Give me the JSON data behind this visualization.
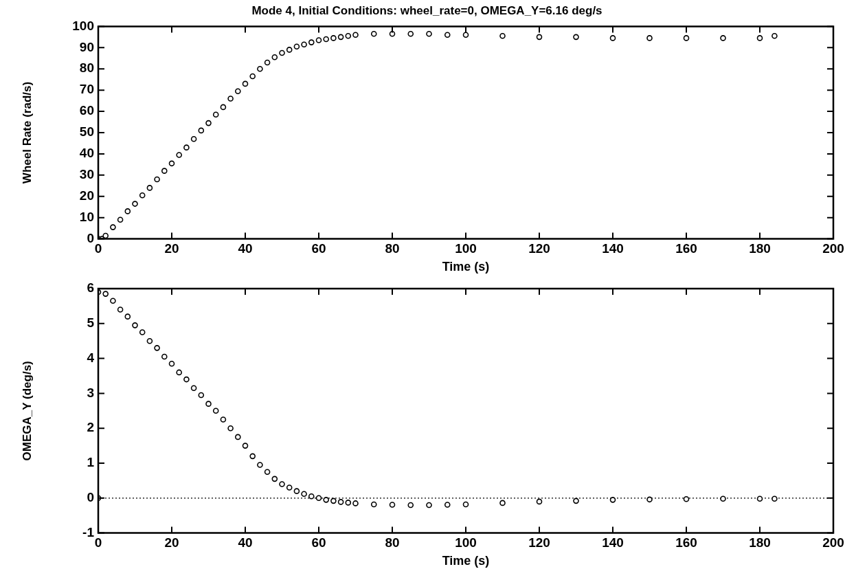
{
  "chart_data": [
    {
      "type": "scatter",
      "title": "Mode 4, Initial Conditions: wheel_rate=0, OMEGA_Y=6.16 deg/s",
      "xlabel": "Time (s)",
      "ylabel": "Wheel Rate (rad/s)",
      "marker": "circle",
      "grid": false,
      "legend": false,
      "xlim": [
        0,
        200
      ],
      "xticks": [
        0,
        20,
        40,
        60,
        80,
        100,
        120,
        140,
        160,
        180,
        200
      ],
      "ylim": [
        0,
        100
      ],
      "yticks": [
        0,
        10,
        20,
        30,
        40,
        50,
        60,
        70,
        80,
        90,
        100
      ],
      "series": [
        {
          "color": "#000000",
          "x": [
            0,
            1,
            2,
            4,
            6,
            8,
            10,
            12,
            14,
            16,
            18,
            20,
            22,
            24,
            26,
            28,
            30,
            32,
            34,
            36,
            38,
            40,
            42,
            44,
            46,
            48,
            50,
            52,
            54,
            56,
            58,
            60,
            62,
            64,
            66,
            68,
            70,
            75,
            80,
            85,
            90,
            95,
            100,
            110,
            120,
            130,
            140,
            150,
            160,
            170,
            180,
            184
          ],
          "values": [
            0,
            0,
            1.5,
            5.5,
            9,
            13,
            16.5,
            20.5,
            24,
            28,
            32,
            35.5,
            39.5,
            43,
            47,
            51,
            54.5,
            58.5,
            62,
            66,
            69.5,
            73,
            76.5,
            80,
            83,
            85.5,
            87.5,
            89,
            90.5,
            91.5,
            92.5,
            93.5,
            94,
            94.5,
            95,
            95.5,
            96,
            96.5,
            96.5,
            96.5,
            96.5,
            96,
            96,
            95.5,
            95,
            95,
            94.5,
            94.5,
            94.5,
            94.5,
            94.5,
            95.5
          ]
        }
      ]
    },
    {
      "type": "scatter",
      "xlabel": "Time (s)",
      "ylabel": "OMEGA_Y (deg/s)",
      "marker": "circle",
      "grid": false,
      "legend": false,
      "xlim": [
        0,
        200
      ],
      "xticks": [
        0,
        20,
        40,
        60,
        80,
        100,
        120,
        140,
        160,
        180,
        200
      ],
      "ylim": [
        -1,
        6
      ],
      "yticks": [
        -1,
        0,
        1,
        2,
        3,
        4,
        5,
        6
      ],
      "ref_lines": [
        {
          "axis": "y",
          "value": 0,
          "color": "#000000",
          "line_style": "dotted"
        }
      ],
      "series": [
        {
          "color": "#000000",
          "x": [
            0,
            0,
            2,
            4,
            6,
            8,
            10,
            12,
            14,
            16,
            18,
            20,
            22,
            24,
            26,
            28,
            30,
            32,
            34,
            36,
            38,
            40,
            42,
            44,
            46,
            48,
            50,
            52,
            54,
            56,
            58,
            60,
            62,
            64,
            66,
            68,
            70,
            75,
            80,
            85,
            90,
            95,
            100,
            110,
            120,
            130,
            140,
            150,
            160,
            170,
            180,
            184
          ],
          "values": [
            0,
            5.9,
            5.85,
            5.65,
            5.4,
            5.2,
            4.95,
            4.75,
            4.5,
            4.3,
            4.05,
            3.85,
            3.6,
            3.4,
            3.15,
            2.95,
            2.7,
            2.5,
            2.25,
            2,
            1.75,
            1.5,
            1.2,
            0.95,
            0.75,
            0.55,
            0.4,
            0.3,
            0.2,
            0.12,
            0.05,
            0,
            -0.05,
            -0.08,
            -0.11,
            -0.13,
            -0.15,
            -0.18,
            -0.19,
            -0.2,
            -0.2,
            -0.19,
            -0.18,
            -0.14,
            -0.1,
            -0.08,
            -0.05,
            -0.04,
            -0.03,
            -0.02,
            -0.02,
            -0.02
          ]
        }
      ]
    }
  ]
}
